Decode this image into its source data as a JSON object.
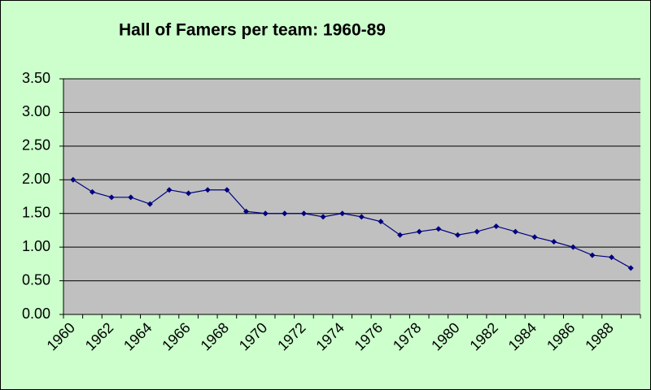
{
  "chart_data": {
    "type": "line",
    "title": "Hall of Famers per team: 1960-89",
    "categories": [
      "1960",
      null,
      "1962",
      null,
      "1964",
      null,
      "1966",
      null,
      "1968",
      null,
      "1970",
      null,
      "1972",
      null,
      "1974",
      null,
      "1976",
      null,
      "1978",
      null,
      "1980",
      null,
      "1982",
      null,
      "1984",
      null,
      "1986",
      null,
      "1988",
      null
    ],
    "series": [
      {
        "color": "#000080",
        "values": [
          2.0,
          1.82,
          1.74,
          1.74,
          1.64,
          1.85,
          1.8,
          1.85,
          1.85,
          1.53,
          1.5,
          1.5,
          1.5,
          1.45,
          1.5,
          1.45,
          1.38,
          1.18,
          1.23,
          1.27,
          1.18,
          1.23,
          1.31,
          1.23,
          1.15,
          1.08,
          1.0,
          0.88,
          0.85,
          0.69
        ]
      }
    ],
    "ylim": [
      0,
      3.5
    ],
    "yticks": [
      {
        "value": 0,
        "label": "0.00"
      },
      {
        "value": 0.5,
        "label": "0.50"
      },
      {
        "value": 1,
        "label": "1.00"
      },
      {
        "value": 1.5,
        "label": "1.50"
      },
      {
        "value": 2,
        "label": "2.00"
      },
      {
        "value": 2.5,
        "label": "2.50"
      },
      {
        "value": 3,
        "label": "3.00"
      },
      {
        "value": 3.5,
        "label": "3.50"
      }
    ],
    "grid": true,
    "background": "#ccffcc",
    "plot_background": "#c0c0c0"
  }
}
